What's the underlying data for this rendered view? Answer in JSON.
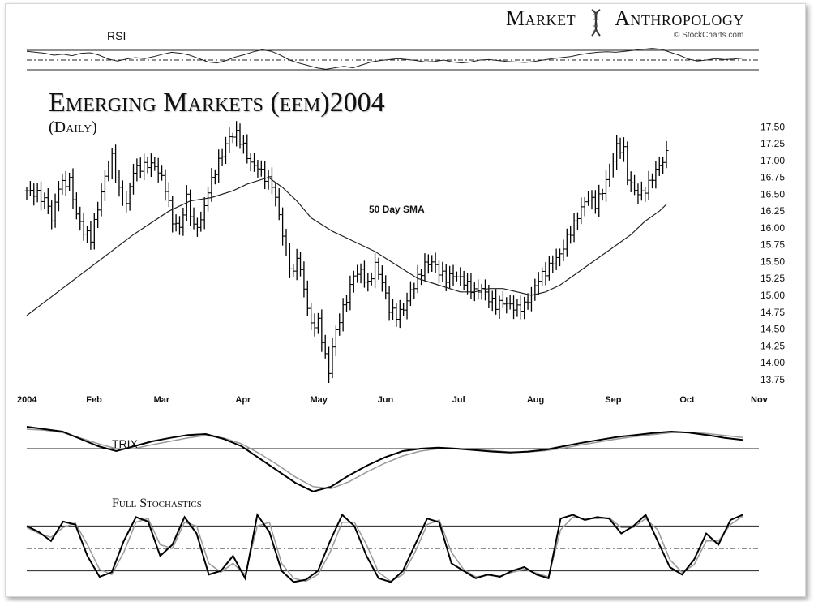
{
  "brand": {
    "word1": "Market",
    "word2": "Anthropology",
    "logo_icon": "dna-helix-icon"
  },
  "credit": "© StockCharts.com",
  "chart_data": {
    "type": "ohlc-bar",
    "title": "Emerging Markets (eem)2004",
    "subtitle": "(Daily)",
    "x_labels": [
      "2004",
      "Feb",
      "Mar",
      "Apr",
      "May",
      "Jun",
      "Jul",
      "Aug",
      "Sep",
      "Oct",
      "Nov"
    ],
    "x_label_days": [
      0,
      19,
      38,
      61,
      82,
      101,
      122,
      143,
      165,
      186,
      206
    ],
    "y_ticks": [
      "17.50",
      "17.25",
      "17.00",
      "16.75",
      "16.50",
      "16.25",
      "16.00",
      "15.75",
      "15.50",
      "15.25",
      "15.00",
      "14.75",
      "14.50",
      "14.25",
      "14.00",
      "13.75"
    ],
    "ylim": [
      13.7,
      17.6
    ],
    "price_anchors": [
      [
        0,
        16.55
      ],
      [
        3,
        16.5
      ],
      [
        6,
        16.35
      ],
      [
        7,
        16.1
      ],
      [
        9,
        16.62
      ],
      [
        12,
        16.7
      ],
      [
        14,
        16.2
      ],
      [
        16,
        15.95
      ],
      [
        18,
        15.85
      ],
      [
        20,
        16.3
      ],
      [
        22,
        16.75
      ],
      [
        24,
        17.05
      ],
      [
        26,
        16.55
      ],
      [
        28,
        16.35
      ],
      [
        30,
        16.85
      ],
      [
        32,
        16.9
      ],
      [
        35,
        16.95
      ],
      [
        37,
        16.85
      ],
      [
        39,
        16.6
      ],
      [
        41,
        16.1
      ],
      [
        43,
        16.0
      ],
      [
        45,
        16.45
      ],
      [
        47,
        16.0
      ],
      [
        49,
        16.1
      ],
      [
        51,
        16.55
      ],
      [
        53,
        16.85
      ],
      [
        55,
        17.1
      ],
      [
        57,
        17.35
      ],
      [
        59,
        17.4
      ],
      [
        61,
        17.2
      ],
      [
        63,
        16.95
      ],
      [
        65,
        16.9
      ],
      [
        67,
        16.75
      ],
      [
        69,
        16.65
      ],
      [
        71,
        16.2
      ],
      [
        73,
        15.6
      ],
      [
        75,
        15.3
      ],
      [
        76,
        15.6
      ],
      [
        78,
        15.1
      ],
      [
        80,
        14.55
      ],
      [
        82,
        14.6
      ],
      [
        84,
        14.1
      ],
      [
        85,
        13.85
      ],
      [
        86,
        14.25
      ],
      [
        88,
        14.65
      ],
      [
        90,
        14.95
      ],
      [
        92,
        15.3
      ],
      [
        94,
        15.35
      ],
      [
        96,
        15.15
      ],
      [
        98,
        15.45
      ],
      [
        100,
        15.2
      ],
      [
        102,
        14.8
      ],
      [
        104,
        14.7
      ],
      [
        106,
        14.8
      ],
      [
        108,
        15.05
      ],
      [
        110,
        15.25
      ],
      [
        112,
        15.45
      ],
      [
        114,
        15.5
      ],
      [
        116,
        15.35
      ],
      [
        118,
        15.25
      ],
      [
        120,
        15.3
      ],
      [
        122,
        15.25
      ],
      [
        124,
        15.15
      ],
      [
        126,
        15.05
      ],
      [
        128,
        15.1
      ],
      [
        130,
        14.95
      ],
      [
        132,
        14.85
      ],
      [
        134,
        14.9
      ],
      [
        136,
        14.85
      ],
      [
        138,
        14.8
      ],
      [
        140,
        14.85
      ],
      [
        142,
        15.0
      ],
      [
        144,
        15.25
      ],
      [
        146,
        15.35
      ],
      [
        148,
        15.5
      ],
      [
        150,
        15.6
      ],
      [
        152,
        15.85
      ],
      [
        154,
        16.05
      ],
      [
        156,
        16.3
      ],
      [
        158,
        16.45
      ],
      [
        160,
        16.35
      ],
      [
        162,
        16.55
      ],
      [
        164,
        16.85
      ],
      [
        166,
        17.2
      ],
      [
        168,
        17.15
      ],
      [
        169,
        16.75
      ],
      [
        171,
        16.55
      ],
      [
        173,
        16.5
      ],
      [
        175,
        16.65
      ],
      [
        177,
        16.85
      ],
      [
        179,
        17.0
      ],
      [
        180,
        17.1
      ]
    ],
    "sma_label": "50 Day SMA",
    "sma": [
      [
        0,
        14.7
      ],
      [
        10,
        15.1
      ],
      [
        20,
        15.5
      ],
      [
        30,
        15.9
      ],
      [
        40,
        16.25
      ],
      [
        46,
        16.4
      ],
      [
        52,
        16.45
      ],
      [
        58,
        16.55
      ],
      [
        62,
        16.65
      ],
      [
        68,
        16.75
      ],
      [
        72,
        16.6
      ],
      [
        76,
        16.4
      ],
      [
        80,
        16.15
      ],
      [
        86,
        15.95
      ],
      [
        92,
        15.8
      ],
      [
        98,
        15.65
      ],
      [
        104,
        15.45
      ],
      [
        110,
        15.25
      ],
      [
        116,
        15.15
      ],
      [
        122,
        15.05
      ],
      [
        126,
        15.05
      ],
      [
        130,
        15.1
      ],
      [
        134,
        15.1
      ],
      [
        138,
        15.05
      ],
      [
        142,
        15.0
      ],
      [
        146,
        15.05
      ],
      [
        150,
        15.15
      ],
      [
        154,
        15.3
      ],
      [
        158,
        15.45
      ],
      [
        162,
        15.6
      ],
      [
        166,
        15.75
      ],
      [
        170,
        15.9
      ],
      [
        174,
        16.1
      ],
      [
        178,
        16.25
      ],
      [
        180,
        16.35
      ]
    ],
    "indicators": {
      "rsi": {
        "label": "RSI",
        "values": [
          68,
          66,
          64,
          60,
          62,
          59,
          64,
          65,
          60,
          52,
          48,
          52,
          55,
          53,
          57,
          62,
          66,
          64,
          60,
          53,
          46,
          44,
          49,
          56,
          61,
          67,
          71,
          68,
          60,
          50,
          44,
          39,
          34,
          31,
          34,
          37,
          34,
          40,
          46,
          49,
          51,
          53,
          51,
          49,
          46,
          47,
          50,
          46,
          44,
          46,
          50,
          51,
          49,
          47,
          46,
          45,
          47,
          50,
          53,
          55,
          57,
          61,
          64,
          66,
          67,
          66,
          68,
          70,
          72,
          74,
          72,
          66,
          60,
          52,
          48,
          50,
          53,
          51,
          52,
          54
        ]
      },
      "trix": {
        "label": "TRIX",
        "main": [
          0.45,
          0.4,
          0.35,
          0.2,
          0.05,
          -0.05,
          0.05,
          0.15,
          0.22,
          0.28,
          0.3,
          0.2,
          0.05,
          -0.2,
          -0.45,
          -0.7,
          -0.88,
          -0.78,
          -0.55,
          -0.35,
          -0.18,
          -0.05,
          0.0,
          0.02,
          0.0,
          -0.03,
          -0.06,
          -0.08,
          -0.06,
          -0.02,
          0.05,
          0.12,
          0.18,
          0.24,
          0.28,
          0.32,
          0.35,
          0.33,
          0.28,
          0.22,
          0.18
        ],
        "signal": [
          0.4,
          0.38,
          0.33,
          0.22,
          0.1,
          0.0,
          0.0,
          0.08,
          0.15,
          0.22,
          0.27,
          0.22,
          0.1,
          -0.1,
          -0.33,
          -0.58,
          -0.78,
          -0.82,
          -0.68,
          -0.48,
          -0.3,
          -0.15,
          -0.05,
          0.0,
          0.0,
          -0.02,
          -0.04,
          -0.07,
          -0.07,
          -0.04,
          0.01,
          0.08,
          0.14,
          0.2,
          0.25,
          0.29,
          0.33,
          0.34,
          0.31,
          0.27,
          0.23
        ]
      },
      "stochastics": {
        "label": "Full Stochastics",
        "k": [
          80,
          72,
          60,
          86,
          82,
          40,
          12,
          18,
          60,
          92,
          86,
          40,
          55,
          92,
          70,
          15,
          20,
          40,
          10,
          95,
          72,
          20,
          5,
          8,
          20,
          60,
          95,
          80,
          40,
          10,
          5,
          20,
          55,
          90,
          85,
          30,
          20,
          10,
          15,
          12,
          20,
          25,
          15,
          10,
          90,
          95,
          88,
          92,
          90,
          70,
          80,
          95,
          60,
          25,
          15,
          35,
          70,
          55,
          88,
          95
        ],
        "d": [
          78,
          70,
          65,
          78,
          84,
          55,
          22,
          15,
          45,
          85,
          90,
          55,
          50,
          85,
          80,
          30,
          18,
          30,
          15,
          80,
          85,
          30,
          10,
          6,
          15,
          45,
          85,
          85,
          55,
          18,
          6,
          15,
          45,
          82,
          88,
          45,
          22,
          12,
          14,
          13,
          18,
          22,
          17,
          12,
          75,
          92,
          90,
          90,
          91,
          78,
          78,
          90,
          75,
          35,
          18,
          28,
          60,
          60,
          82,
          93
        ],
        "levels": [
          80,
          50,
          20
        ]
      }
    }
  }
}
